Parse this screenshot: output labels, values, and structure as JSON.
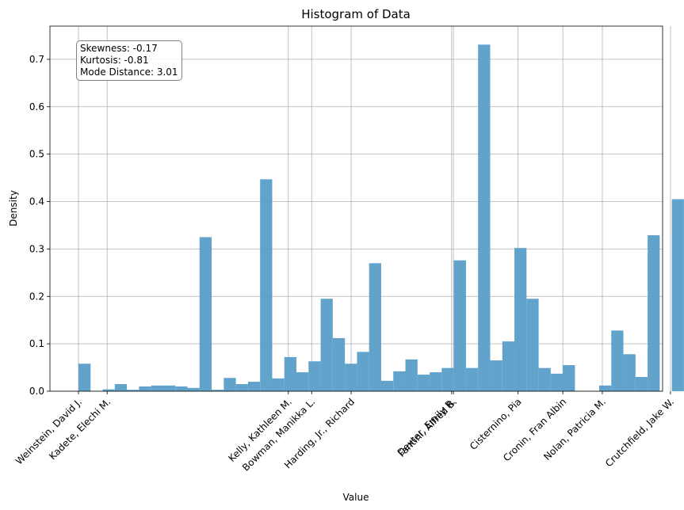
{
  "chart_data": {
    "type": "bar",
    "title": "Histogram of Data",
    "xlabel": "Value",
    "ylabel": "Density",
    "ylim": [
      0,
      0.77
    ],
    "xlim": [
      -1.59,
      32.56
    ],
    "y_ticks": [
      0.0,
      0.1,
      0.2,
      0.3,
      0.4,
      0.5,
      0.6,
      0.7
    ],
    "grid": true,
    "color": "#5a9ec9",
    "x_ticks": [
      {
        "value": 0.0,
        "label": "Weinstein, David J."
      },
      {
        "value": 1.6,
        "label": "Kadete, Elechi M."
      },
      {
        "value": 11.7,
        "label": "Kelly, Kathleen M."
      },
      {
        "value": 13.0,
        "label": "Bowman, Manikka L."
      },
      {
        "value": 15.2,
        "label": "Harding, Jr., Richard"
      },
      {
        "value": 20.8,
        "label": "Dexter, Emily R."
      },
      {
        "value": 20.9,
        "label": "Fantini, Alfred B."
      },
      {
        "value": 24.5,
        "label": "Cisternino, Pia"
      },
      {
        "value": 27.0,
        "label": "Cronin, Fran Albin"
      },
      {
        "value": 29.2,
        "label": "Nolan, Patricia M."
      },
      {
        "value": 33.0,
        "label": "Crutchfield, Jake W."
      }
    ],
    "bin_edges": [
      0.0,
      0.675,
      1.35,
      2.025,
      2.7,
      3.375,
      4.05,
      4.725,
      5.4,
      6.075,
      6.75,
      7.425,
      8.1,
      8.775,
      9.45,
      10.125,
      10.8,
      11.475,
      12.15,
      12.825,
      13.5,
      14.175,
      14.85,
      15.525,
      16.2,
      16.875,
      17.55,
      18.225,
      18.9,
      19.575,
      20.25,
      20.925,
      21.6,
      22.275,
      22.95,
      23.625,
      24.3,
      24.975,
      25.65,
      26.325,
      27.0,
      27.675,
      28.35,
      29.025,
      29.7,
      30.375,
      31.05,
      31.725,
      32.4,
      33.075,
      33.75
    ],
    "values": [
      0.058,
      0.0,
      0.004,
      0.015,
      0.003,
      0.01,
      0.012,
      0.012,
      0.01,
      0.007,
      0.325,
      0.003,
      0.028,
      0.015,
      0.02,
      0.447,
      0.027,
      0.072,
      0.04,
      0.063,
      0.195,
      0.112,
      0.058,
      0.083,
      0.27,
      0.022,
      0.042,
      0.067,
      0.035,
      0.04,
      0.049,
      0.276,
      0.049,
      0.731,
      0.065,
      0.105,
      0.302,
      0.195,
      0.049,
      0.037,
      0.055,
      0.0,
      0.0,
      0.012,
      0.128,
      0.078,
      0.03,
      0.329,
      0.0,
      0.405
    ]
  },
  "stats": {
    "skewness": "Skewness: -0.17",
    "kurtosis": "Kurtosis: -0.81",
    "mode_distance": "Mode Distance: 3.01"
  }
}
